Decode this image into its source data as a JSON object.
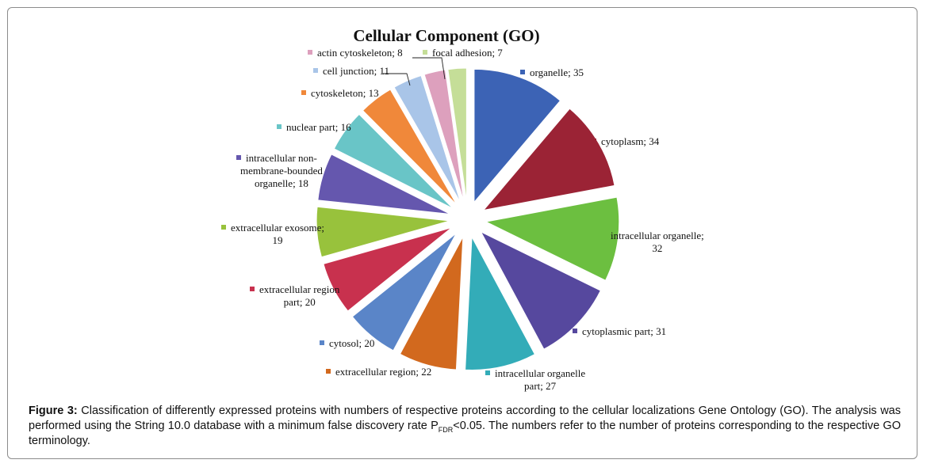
{
  "chart_data": {
    "type": "pie",
    "title": "Cellular Component (GO)",
    "exploded": true,
    "label_separator": "; ",
    "slices": [
      {
        "label": "organelle",
        "value": 35,
        "color": "#3C63B5",
        "label_lines": [
          "organelle; 35"
        ]
      },
      {
        "label": "cytoplasm",
        "value": 34,
        "color": "#9B2335",
        "label_lines": [
          "cytoplasm; 34"
        ]
      },
      {
        "label": "intracellular organelle",
        "value": 32,
        "color": "#6CBF40",
        "label_lines": [
          "intracellular organelle;",
          "32"
        ]
      },
      {
        "label": "cytoplasmic part",
        "value": 31,
        "color": "#56489E",
        "label_lines": [
          "cytoplasmic part; 31"
        ]
      },
      {
        "label": "intracellular organelle part",
        "value": 27,
        "color": "#33ACB8",
        "label_lines": [
          "intracellular organelle",
          "part; 27"
        ]
      },
      {
        "label": "extracellular region",
        "value": 22,
        "color": "#D2691E",
        "label_lines": [
          "extracellular region; 22"
        ]
      },
      {
        "label": "cytosol",
        "value": 20,
        "color": "#5A85C8",
        "label_lines": [
          "cytosol; 20"
        ]
      },
      {
        "label": "extracellular region part",
        "value": 20,
        "color": "#C8314E",
        "label_lines": [
          "extracellular region",
          "part; 20"
        ]
      },
      {
        "label": "extracellular exosome",
        "value": 19,
        "color": "#98C23C",
        "label_lines": [
          "extracellular exosome;",
          "19"
        ]
      },
      {
        "label": "intracellular non-membrane-bounded organelle",
        "value": 18,
        "color": "#6557AE",
        "label_lines": [
          "intracellular non-",
          "membrane-bounded",
          "organelle; 18"
        ]
      },
      {
        "label": "nuclear part",
        "value": 16,
        "color": "#69C5C7",
        "label_lines": [
          "nuclear part; 16"
        ]
      },
      {
        "label": "cytoskeleton",
        "value": 13,
        "color": "#F0883A",
        "label_lines": [
          "cytoskeleton; 13"
        ]
      },
      {
        "label": "cell junction",
        "value": 11,
        "color": "#A9C5E8",
        "label_lines": [
          "cell junction; 11"
        ]
      },
      {
        "label": "actin cytoskeleton",
        "value": 8,
        "color": "#DDA0BD",
        "label_lines": [
          "actin cytoskeleton; 8"
        ]
      },
      {
        "label": "focal adhesion",
        "value": 7,
        "color": "#C5DE98",
        "label_lines": [
          "focal adhesion; 7"
        ]
      }
    ]
  },
  "caption": {
    "figure_label": "Figure 3:",
    "text_before_sub": " Classification of differently expressed proteins with numbers of respective proteins according to the cellular localizations Gene Ontology (GO). The analysis was performed using the String 10.0 database with a minimum false discovery rate P",
    "subscript": "FDR",
    "text_after_sub": "<0.05. The numbers refer to the number of proteins corresponding to the respective GO terminology."
  }
}
